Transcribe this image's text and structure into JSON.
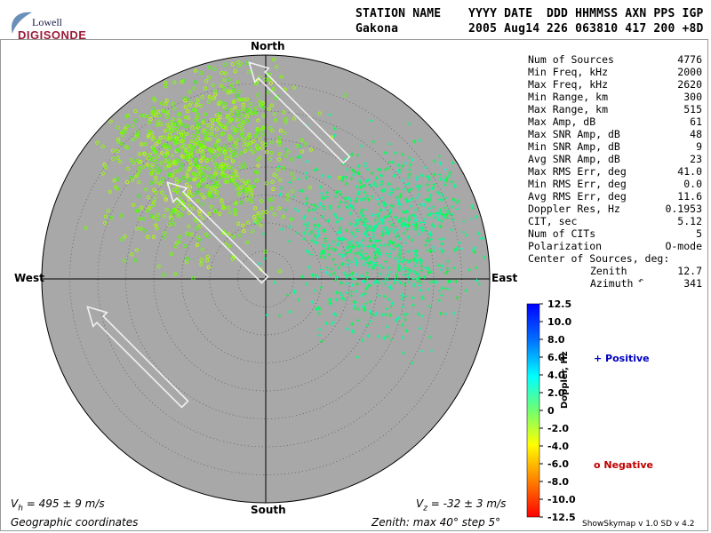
{
  "logo": {
    "line1": "Lowell",
    "line2": "DIGISONDE"
  },
  "header": {
    "labels": [
      "STATION NAME",
      "YYYY DATE",
      "DDD HHMMSS AXN PPS IGP"
    ],
    "values": [
      "Gakona",
      "2005 Aug14",
      "226 063810 417 200 +8D"
    ]
  },
  "directions": {
    "north": "North",
    "south": "South",
    "east": "East",
    "west": "West"
  },
  "stats": [
    {
      "label": "Num of Sources",
      "value": "4776"
    },
    {
      "label": "Min Freq, kHz",
      "value": "2000"
    },
    {
      "label": "Max Freq, kHz",
      "value": "2620"
    },
    {
      "label": "Min Range, km",
      "value": "300"
    },
    {
      "label": "Max Range, km",
      "value": "515"
    },
    {
      "label": "Max Amp, dB",
      "value": "61"
    },
    {
      "label": "Max SNR Amp, dB",
      "value": "48"
    },
    {
      "label": "Min SNR Amp, dB",
      "value": "9"
    },
    {
      "label": "Avg SNR Amp, dB",
      "value": "23"
    },
    {
      "label": "Max RMS Err, deg",
      "value": "41.0"
    },
    {
      "label": "Min RMS Err, deg",
      "value": "0.0"
    },
    {
      "label": "Avg RMS Err, deg",
      "value": "11.6"
    },
    {
      "label": "Doppler Res, Hz",
      "value": "0.1953"
    },
    {
      "label": "CIT, sec",
      "value": "5.12"
    },
    {
      "label": "Num of CITs",
      "value": "5"
    },
    {
      "label": "Polarization",
      "value": "O-mode"
    }
  ],
  "center": {
    "title": "Center of Sources, deg:",
    "zenith_label": "Zenith",
    "zenith_value": "12.7",
    "azimuth_label": "Azimuth",
    "azimuth_value": "341"
  },
  "legend": {
    "positive": "+ Positive",
    "negative": "o Negative"
  },
  "footer": {
    "vh": "V",
    "vh_sub": "h",
    "vh_rest": " = 495 ± 9 m/s",
    "vz": "V",
    "vz_sub": "z",
    "vz_rest": " = -32 ± 3 m/s",
    "coords": "Geographic coordinates",
    "zenith": "Zenith: max 40°  step 5°",
    "version": "ShowSkymap v 1.0   SD v 4.2"
  },
  "colors": {
    "disk": "#a8a8a8",
    "positive": "#0000c0",
    "negative": "#c00000"
  },
  "chart_data": {
    "type": "scatter",
    "projection": "polar-skymap",
    "zenith_max_deg": 40,
    "zenith_step_deg": 5,
    "colorbar": {
      "label": "Doppler, Hz",
      "min": -12.5,
      "max": 12.5,
      "ticks": [
        "12.5",
        "10.0",
        "8.0",
        "6.0",
        "4.0",
        "2.0",
        "0",
        "-2.0",
        "-4.0",
        "-6.0",
        "-8.0",
        "-10.0",
        "-12.5"
      ]
    },
    "velocity_arrows_azimuth_deg": 315,
    "series": [
      {
        "name": "Positive",
        "marker": "+",
        "center_zenith_deg": 22,
        "center_azimuth_deg": 70,
        "doppler_hz": 3
      },
      {
        "name": "Negative",
        "marker": "o",
        "center_zenith_deg": 25,
        "center_azimuth_deg": 335,
        "doppler_hz": -3
      }
    ],
    "summary": {
      "num_sources": 4776,
      "center_zenith_deg": 12.7,
      "center_azimuth_deg": 341
    }
  }
}
